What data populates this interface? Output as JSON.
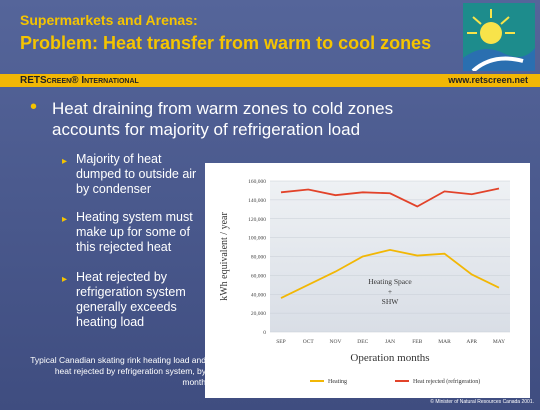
{
  "header": {
    "subtitle": "Supermarkets and Arenas:",
    "title": "Problem: Heat transfer from warm to cool zones"
  },
  "banner": {
    "brand": "RETScreen® International",
    "url": "www.retscreen.net"
  },
  "main_bullet": "Heat draining from warm zones to cold zones accounts for majority of refrigeration load",
  "sub_bullets": [
    "Majority of heat dumped to outside air by condenser",
    "Heating system must make up for some of this rejected heat",
    "Heat rejected by refrigeration system generally exceeds heating load"
  ],
  "caption": "Typical Canadian skating rink heating load and heat rejected by refrigeration system, by month",
  "copyright": "© Minister of Natural Resources Canada 2001.",
  "chart_data": {
    "type": "line",
    "x_label": "Operation months",
    "y_label": "kWh equivalent / year",
    "annotation": [
      "Heating Space",
      "+",
      "SHW"
    ],
    "categories": [
      "SEP",
      "OCT",
      "NOV",
      "DEC",
      "JAN",
      "FEB",
      "MAR",
      "APR",
      "MAY"
    ],
    "series": [
      {
        "name": "Heating",
        "color": "#f2b705",
        "values": [
          36000,
          50000,
          64000,
          80000,
          87000,
          81000,
          83000,
          61000,
          47000
        ]
      },
      {
        "name": "Heat rejected (refrigeration)",
        "color": "#e2432a",
        "values": [
          148000,
          151000,
          145000,
          148000,
          147000,
          133000,
          149000,
          146000,
          152000
        ]
      }
    ],
    "ylim": [
      0,
      160000
    ],
    "yticks": [
      0,
      {
        "value": 20000,
        "label": "20,000"
      },
      {
        "value": 40000,
        "label": "40,000"
      },
      {
        "value": 60000,
        "label": "60,000"
      },
      {
        "value": 80000,
        "label": "80,000"
      },
      {
        "value": 100000,
        "label": "100,000"
      },
      {
        "value": 120000,
        "label": "120,000"
      },
      {
        "value": 140000,
        "label": "140,000"
      },
      {
        "value": 160000,
        "label": "160,000"
      }
    ],
    "grid": true,
    "legend": "bottom"
  }
}
